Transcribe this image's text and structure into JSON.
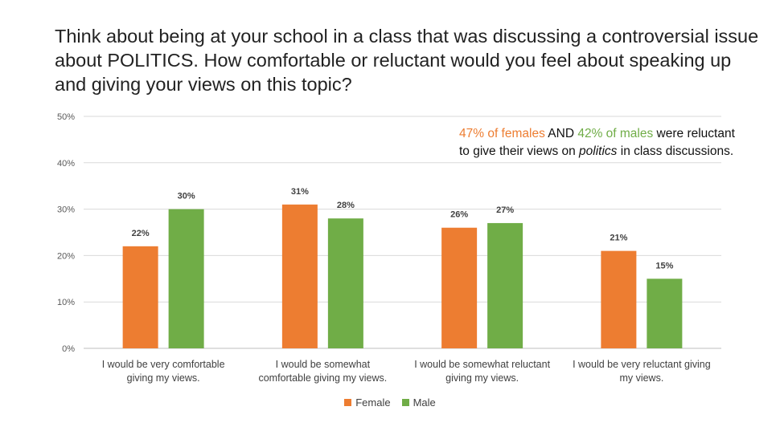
{
  "title": "Think about being at your school in a class that was discussing a controversial issue about POLITICS. How comfortable or reluctant would you feel about speaking up and giving your views on this topic?",
  "annotation": {
    "female_part": "47% of females",
    "and_part": " AND ",
    "male_part": "42% of males",
    "rest_1": " were reluctant to give their views on ",
    "italic_word": "politics",
    "rest_2": " in class discussions."
  },
  "colors": {
    "female": "#ED7D31",
    "male": "#70AD47",
    "grid": "#D9D9D9",
    "axis_text": "#595959"
  },
  "chart_data": {
    "type": "bar",
    "categories": [
      "I would be very comfortable giving my views.",
      "I would be somewhat comfortable giving my views.",
      "I would be somewhat reluctant giving my views.",
      "I would be very reluctant giving my views."
    ],
    "category_lines": [
      [
        "I would be very comfortable",
        "giving my views."
      ],
      [
        "I would be somewhat",
        "comfortable giving my views."
      ],
      [
        "I would be somewhat reluctant",
        "giving my views."
      ],
      [
        "I would be very reluctant giving",
        "my views."
      ]
    ],
    "series": [
      {
        "name": "Female",
        "values": [
          22,
          31,
          26,
          21
        ],
        "labels": [
          "22%",
          "31%",
          "26%",
          "21%"
        ]
      },
      {
        "name": "Male",
        "values": [
          30,
          28,
          27,
          15
        ],
        "labels": [
          "30%",
          "28%",
          "27%",
          "15%"
        ]
      }
    ],
    "yticks": [
      "0%",
      "10%",
      "20%",
      "30%",
      "40%",
      "50%"
    ],
    "ylim": [
      0,
      50
    ],
    "grid": true,
    "legend": "bottom"
  }
}
